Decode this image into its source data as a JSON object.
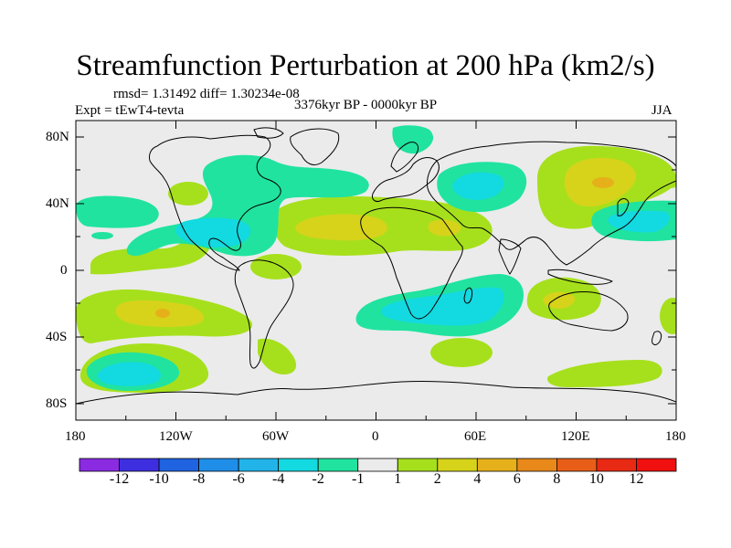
{
  "title": "Streamfunction Perturbation at 200 hPa (km2/s)",
  "stats": "rmsd= 1.31492 diff= 1.30234e-08",
  "experiment": "Expt = tEwT4-tevta",
  "period": "3376kyr BP - 0000kyr BP",
  "season": "JJA",
  "lat_labels": [
    "80N",
    "40N",
    "0",
    "40S",
    "80S"
  ],
  "lon_labels": [
    "180",
    "120W",
    "60W",
    "0",
    "60E",
    "120E",
    "180"
  ],
  "colorbar": {
    "labels": [
      "-12",
      "-10",
      "-8",
      "-6",
      "-4",
      "-2",
      "-1",
      "1",
      "2",
      "4",
      "6",
      "8",
      "10",
      "12"
    ],
    "colors": [
      "#8a2be2",
      "#3d2fe0",
      "#1f63e0",
      "#1f8ee8",
      "#22b4e8",
      "#13d9e0",
      "#20e3a0",
      "#ebebeb",
      "#a6e01c",
      "#d6d31a",
      "#e6b01a",
      "#e8891a",
      "#e85e18",
      "#e82a14",
      "#f01010"
    ]
  },
  "colors": {
    "background": "#ebebeb",
    "pos2": "#a6e01c",
    "pos4": "#d6d31a",
    "pos6": "#e6b01a",
    "neg2": "#20e3a0",
    "neg4": "#13d9e0",
    "neg6": "#22b4e8"
  }
}
